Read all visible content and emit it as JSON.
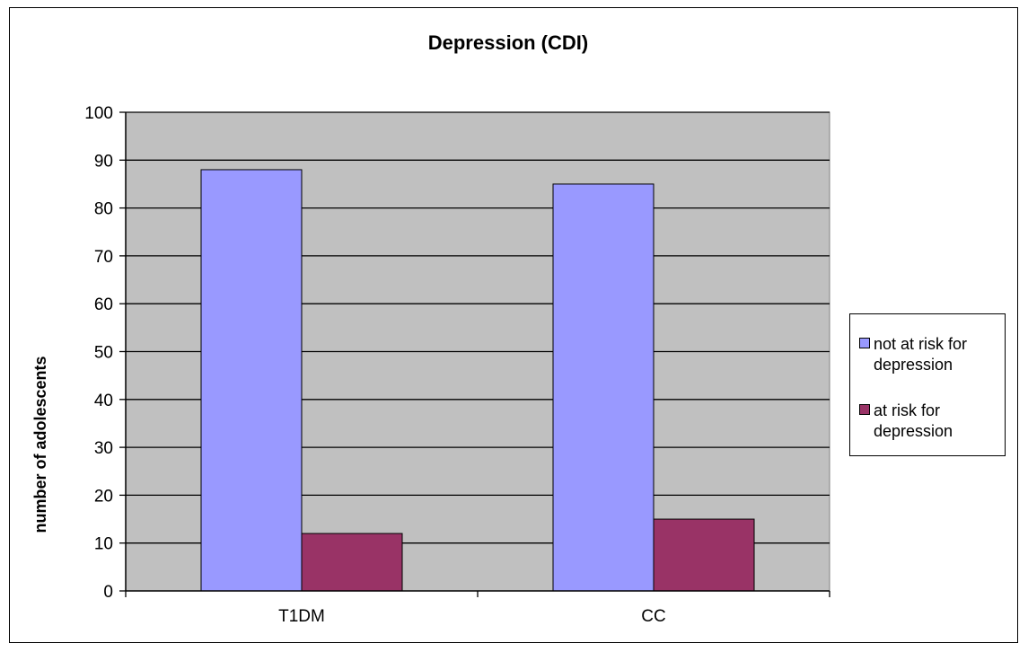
{
  "chart_data": {
    "type": "bar",
    "title": "Depression (CDI)",
    "xlabel": "",
    "ylabel": "number of adolescents",
    "categories": [
      "T1DM",
      "CC"
    ],
    "series": [
      {
        "name": "not at risk for depression",
        "values": [
          88,
          85
        ],
        "color": "#9999ff"
      },
      {
        "name": "at risk for depression",
        "values": [
          12,
          15
        ],
        "color": "#993366"
      }
    ],
    "ylim": [
      0,
      100
    ],
    "yticks": [
      0,
      10,
      20,
      30,
      40,
      50,
      60,
      70,
      80,
      90,
      100
    ],
    "grid": true,
    "legend": "right",
    "plot_background": "#c0c0c0"
  }
}
